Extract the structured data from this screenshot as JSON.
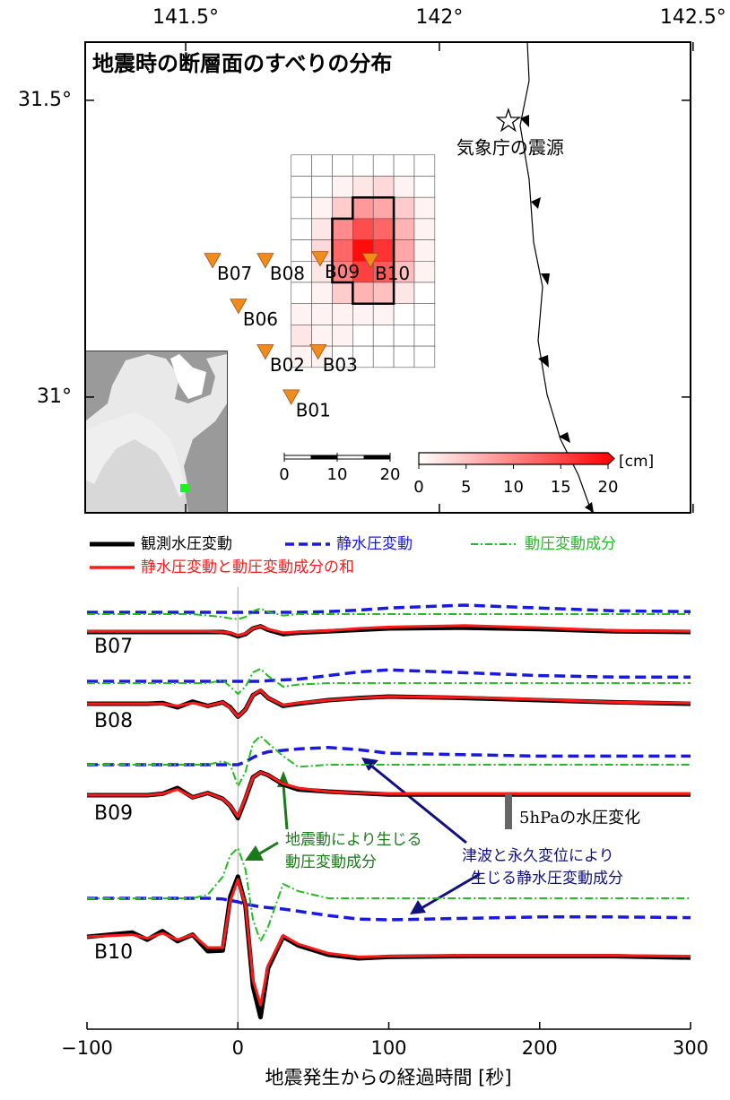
{
  "chart_data": [
    {
      "type": "map",
      "title": "地震時の断層面のすべりの分布",
      "xlim": [
        141.302,
        142.495
      ],
      "ylim": [
        30.805,
        31.598
      ],
      "xticks": [
        {
          "value": 141.5,
          "label": "141.5°"
        },
        {
          "value": 142,
          "label": "142°"
        },
        {
          "value": 142.5,
          "label": "142.5°"
        }
      ],
      "yticks": [
        {
          "value": 31.5,
          "label": "31.5°"
        },
        {
          "value": 31,
          "label": "31°"
        }
      ],
      "stations": [
        {
          "name": "B07",
          "lon": 141.553,
          "lat": 31.23
        },
        {
          "name": "B08",
          "lon": 141.657,
          "lat": 31.23
        },
        {
          "name": "B09",
          "lon": 141.765,
          "lat": 31.233
        },
        {
          "name": "B10",
          "lon": 141.864,
          "lat": 31.23
        },
        {
          "name": "B06",
          "lon": 141.604,
          "lat": 31.153
        },
        {
          "name": "B02",
          "lon": 141.657,
          "lat": 31.076
        },
        {
          "name": "B03",
          "lon": 141.761,
          "lat": 31.076
        },
        {
          "name": "B01",
          "lon": 141.708,
          "lat": 31.0
        }
      ],
      "station_color": "#f08c1e",
      "epicenter": {
        "label": "気象庁の震源",
        "lon": 142.136,
        "lat": 31.465
      },
      "fault_grid": {
        "lon": [
          141.708,
          141.991
        ],
        "lat": [
          31.408,
          31.05
        ],
        "slip": [
          [
            0,
            0,
            0,
            0,
            0,
            0,
            0
          ],
          [
            0,
            0,
            1,
            2,
            3,
            1,
            0
          ],
          [
            0,
            1,
            4,
            8,
            7,
            4,
            1
          ],
          [
            0,
            2,
            9,
            14,
            12,
            6,
            1
          ],
          [
            0,
            3,
            12,
            19,
            16,
            7,
            1
          ],
          [
            0,
            2,
            10,
            15,
            13,
            5,
            1
          ],
          [
            0,
            1,
            4,
            6,
            5,
            2,
            0
          ],
          [
            1,
            1,
            1,
            1,
            1,
            0,
            0
          ],
          [
            2,
            1,
            1,
            0,
            0,
            0,
            0
          ],
          [
            1,
            1,
            0,
            0,
            0,
            0,
            0
          ]
        ]
      },
      "colorbar": {
        "label": "[cm]",
        "lim": [
          0,
          20
        ],
        "ticks": [
          0,
          5,
          10,
          15,
          20
        ],
        "color": "#ff0000"
      },
      "scale_km": [
        0,
        10,
        20
      ]
    },
    {
      "type": "line",
      "xlim": [
        -100,
        300
      ],
      "xticks": [
        {
          "value": -100,
          "label": "−100"
        },
        0,
        100,
        200,
        300
      ],
      "xlabel": "地震発生からの経過時間 [秒]",
      "x": [
        -100,
        -70,
        -60,
        -50,
        -40,
        -30,
        -20,
        -10,
        -5,
        0,
        5,
        10,
        15,
        20,
        30,
        40,
        60,
        80,
        100,
        150,
        200,
        250,
        300
      ],
      "series_styles": [
        {
          "name": "観測水圧変動",
          "color": "#000000",
          "dash": "solid"
        },
        {
          "name": "静水圧変動",
          "color": "#1a1adc",
          "dash": "dashed"
        },
        {
          "name": "動圧変動成分",
          "color": "#22bb22",
          "dash": "dashdot"
        },
        {
          "name": "静水圧変動と動圧変動成分の和",
          "color": "#ff1a1a",
          "dash": "solid"
        }
      ],
      "panels": [
        {
          "station": "B07",
          "values": [
            [
              0,
              0,
              0,
              0,
              0,
              0,
              0,
              0,
              -0.2,
              -0.6,
              -0.3,
              0.5,
              0.8,
              0.3,
              -0.3,
              -0.1,
              0.1,
              0.3,
              0.5,
              0.6,
              0.4,
              0.1,
              0
            ],
            [
              0,
              0,
              0,
              0,
              0,
              0,
              0,
              0,
              0,
              0,
              0,
              0,
              0,
              0,
              0,
              0,
              0.1,
              0.3,
              0.6,
              1,
              0.6,
              0.2,
              0.1
            ],
            [
              0,
              0,
              0,
              0,
              0,
              0,
              -0.2,
              -0.4,
              -0.6,
              -0.7,
              -0.4,
              0.4,
              0.8,
              0.3,
              -0.2,
              0,
              0,
              0,
              0,
              0,
              0,
              0,
              0
            ],
            [
              0.1,
              0.1,
              0.1,
              0.1,
              0.1,
              0.1,
              0.1,
              0,
              -0.1,
              -0.5,
              -0.2,
              0.5,
              0.8,
              0.4,
              -0.1,
              0,
              0.2,
              0.5,
              0.7,
              0.9,
              0.6,
              0.2,
              0.1
            ]
          ]
        },
        {
          "station": "B08",
          "values": [
            [
              0,
              0,
              0,
              0.1,
              -0.5,
              0.3,
              -0.3,
              0.2,
              -0.5,
              -1.8,
              -0.8,
              1.2,
              1.8,
              0.8,
              -0.3,
              0,
              0.5,
              0.8,
              1,
              0.8,
              0.5,
              0.2,
              0
            ],
            [
              0,
              0,
              0,
              0,
              0,
              0,
              0,
              0,
              0,
              0,
              0,
              0,
              0,
              0.1,
              0.2,
              0.3,
              0.8,
              1.3,
              1.6,
              1.2,
              0.8,
              0.6,
              0.6
            ],
            [
              0,
              0,
              0,
              0,
              0,
              0,
              0,
              0.4,
              -0.5,
              -1.5,
              -0.5,
              1.5,
              2,
              1,
              -0.5,
              -0.2,
              0,
              0,
              0,
              0,
              0,
              0,
              0
            ],
            [
              0,
              0,
              0,
              0,
              -0.3,
              0.1,
              -0.3,
              0.2,
              -0.6,
              -1.8,
              -0.8,
              1.2,
              1.9,
              0.8,
              -0.2,
              0.1,
              0.5,
              0.8,
              1,
              0.9,
              0.6,
              0.2,
              0.1
            ]
          ]
        },
        {
          "station": "B09",
          "values": [
            [
              0,
              0,
              0,
              0.2,
              1,
              -0.3,
              0.3,
              -0.5,
              -1.5,
              -3.2,
              -0.5,
              2.5,
              3.2,
              2.8,
              1.5,
              0.8,
              0.5,
              0.3,
              0.1,
              0.1,
              0.1,
              0.1,
              0.1
            ],
            [
              0,
              0,
              0,
              0,
              0,
              0,
              0,
              0,
              0,
              0,
              0.4,
              1,
              1.5,
              1.8,
              2,
              2.2,
              2.4,
              2.1,
              1.6,
              1.4,
              1.2,
              1.2,
              1.2
            ],
            [
              0,
              0,
              0,
              0,
              0,
              0,
              0,
              0.5,
              0,
              -3,
              -1,
              3,
              4,
              3,
              1.2,
              -0.3,
              0,
              0,
              0,
              0,
              0,
              0,
              0
            ],
            [
              0,
              0,
              0,
              0.2,
              0.8,
              -0.3,
              0.3,
              -0.5,
              -1.5,
              -3,
              -0.3,
              2.5,
              3.2,
              2.8,
              1.6,
              1,
              0.5,
              0.3,
              0.2,
              0.2,
              0.2,
              0.2,
              0.2
            ]
          ]
        },
        {
          "station": "B10",
          "values": [
            [
              0,
              0.6,
              -0.4,
              0.8,
              -0.6,
              0.3,
              -2,
              -1.9,
              5.6,
              8.4,
              4.4,
              -6.9,
              -11.2,
              -4.4,
              0,
              -1.2,
              -2.5,
              -3,
              -2.8,
              -2.7,
              -2.7,
              -2.7,
              -2.9
            ],
            [
              0,
              0,
              0,
              0,
              0,
              0,
              0,
              -0.1,
              -0.3,
              -0.5,
              -0.8,
              -1,
              -1.2,
              -1.3,
              -1.5,
              -1.8,
              -2.4,
              -2.9,
              -3,
              -2.8,
              -2.6,
              -2.6,
              -2.7
            ],
            [
              0,
              0,
              0,
              0,
              0,
              0,
              0.5,
              3,
              6,
              7,
              4,
              -3,
              -6,
              -4,
              2,
              1,
              0,
              0,
              0,
              0,
              0,
              0,
              0
            ],
            [
              0,
              0.3,
              -0.2,
              0.5,
              -0.4,
              0.3,
              -1.5,
              -1.5,
              5,
              8,
              4.4,
              -6,
              -9.5,
              -4,
              0.2,
              -1,
              -2.3,
              -2.8,
              -2.7,
              -2.6,
              -2.6,
              -2.6,
              -2.7
            ]
          ]
        }
      ],
      "scale_bar": {
        "value": 5,
        "label": "5hPaの水圧変化"
      },
      "annotations": [
        [
          "地震動により生じる",
          "動圧変動成分"
        ],
        [
          "津波と永久変位により",
          "生じる静水圧変動成分"
        ]
      ]
    }
  ]
}
